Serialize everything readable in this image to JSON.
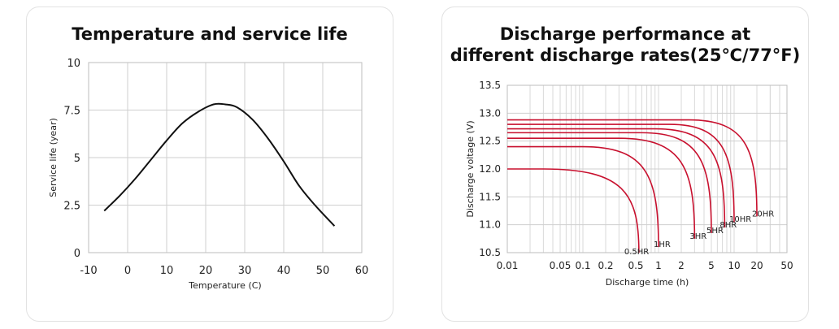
{
  "chart_data": [
    {
      "type": "line",
      "title": "Temperature and service life",
      "xlabel": "Temperature (C)",
      "ylabel": "Service life (year)",
      "xlim": [
        -10,
        60
      ],
      "ylim": [
        0,
        10
      ],
      "x_ticks": [
        -10,
        0,
        10,
        20,
        30,
        40,
        50,
        60
      ],
      "x_tick_labels": [
        "-10",
        "0",
        "10",
        "20",
        "30",
        "40",
        "50",
        "60"
      ],
      "y_ticks": [
        0,
        2.5,
        5,
        7.5,
        10
      ],
      "y_tick_labels": [
        "0",
        "2.5",
        "5",
        "7.5",
        "10"
      ],
      "grid": true,
      "series": [
        {
          "name": "Service life",
          "color": "#111111",
          "x": [
            -6,
            -2,
            2,
            6,
            10,
            14,
            18,
            22,
            25,
            28,
            32,
            36,
            40,
            44,
            48,
            53
          ],
          "y": [
            2.2,
            3.0,
            3.9,
            4.9,
            5.9,
            6.8,
            7.4,
            7.8,
            7.8,
            7.65,
            7.0,
            6.0,
            4.8,
            3.5,
            2.5,
            1.4
          ]
        }
      ]
    },
    {
      "type": "line",
      "title_lines": [
        "Discharge performance at",
        "different discharge rates(25℃/77°F)"
      ],
      "xlabel": "Discharge time (h)",
      "ylabel": "Discharge voltage (V)",
      "x_scale": "log",
      "xlim": [
        0.01,
        50
      ],
      "ylim": [
        10.5,
        13.5
      ],
      "x_ticks": [
        0.01,
        0.05,
        0.1,
        0.2,
        0.5,
        1,
        2,
        5,
        10,
        20,
        50
      ],
      "x_tick_labels": [
        "0.01",
        "0.05",
        "0.1",
        "0.2",
        "0.5",
        "1",
        "2",
        "5",
        "10",
        "20",
        "50"
      ],
      "y_ticks": [
        10.5,
        11.0,
        11.5,
        12.0,
        12.5,
        13.0,
        13.5
      ],
      "y_tick_labels": [
        "10.5",
        "11.0",
        "11.5",
        "12.0",
        "12.5",
        "13.0",
        "13.5"
      ],
      "grid": true,
      "line_color": "#c8102e",
      "series": [
        {
          "name": "0.5HR",
          "flat_voltage": 12.0,
          "knee_time": 0.03,
          "end_time": 0.55,
          "end_voltage": 10.5
        },
        {
          "name": "1HR",
          "flat_voltage": 12.4,
          "knee_time": 0.1,
          "end_time": 1.0,
          "end_voltage": 10.6
        },
        {
          "name": "3HR",
          "flat_voltage": 12.55,
          "knee_time": 0.3,
          "end_time": 3.0,
          "end_voltage": 10.75
        },
        {
          "name": "5HR",
          "flat_voltage": 12.65,
          "knee_time": 0.6,
          "end_time": 5.0,
          "end_voltage": 10.85
        },
        {
          "name": "8HR",
          "flat_voltage": 12.72,
          "knee_time": 0.9,
          "end_time": 7.5,
          "end_voltage": 10.95
        },
        {
          "name": "10HR",
          "flat_voltage": 12.8,
          "knee_time": 1.4,
          "end_time": 10.0,
          "end_voltage": 11.05
        },
        {
          "name": "20HR",
          "flat_voltage": 12.88,
          "knee_time": 2.5,
          "end_time": 20.0,
          "end_voltage": 11.15
        }
      ]
    }
  ]
}
